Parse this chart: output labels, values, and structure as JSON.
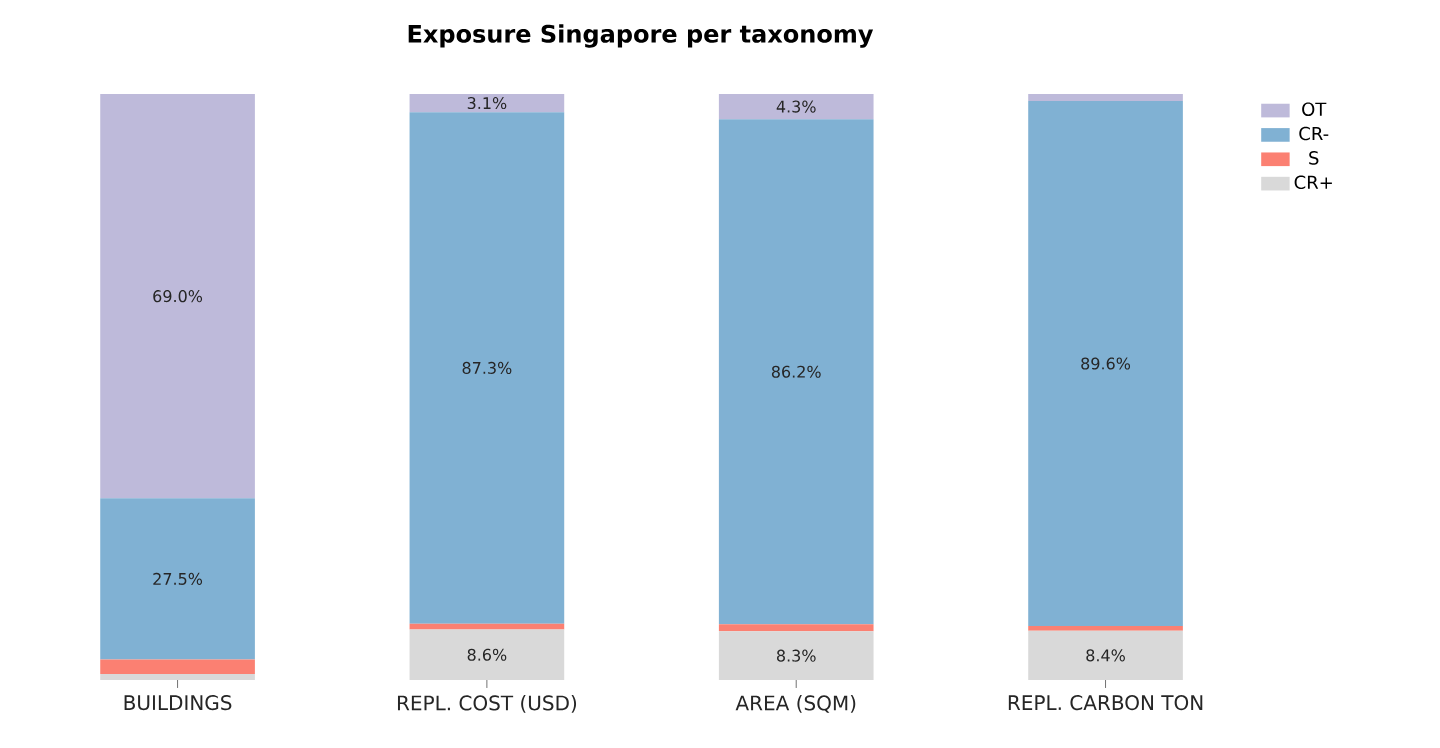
{
  "chart_data": {
    "type": "bar",
    "title": "Exposure Singapore per taxonomy",
    "stacked": true,
    "categories": [
      "BUILDINGS",
      "REPL. COST (USD)",
      "AREA (SQM)",
      "REPL. CARBON TON"
    ],
    "ylim": [
      0,
      100
    ],
    "tick_labels": "x",
    "legend": "top right",
    "grid": false,
    "series": [
      {
        "name": "CR+",
        "color": "#d9d9d9",
        "values": [
          1.0,
          8.6,
          8.3,
          8.4
        ],
        "value_labels": [
          null,
          "8.6%",
          "8.3%",
          "8.4%"
        ]
      },
      {
        "name": "S",
        "color": "#fb8072",
        "values": [
          2.5,
          1.0,
          1.2,
          0.8
        ],
        "value_labels": [
          null,
          null,
          null,
          null
        ]
      },
      {
        "name": "CR-",
        "color": "#80b1d3",
        "values": [
          27.5,
          87.3,
          86.2,
          89.6
        ],
        "value_labels": [
          "27.5%",
          "87.3%",
          "86.2%",
          "89.6%"
        ]
      },
      {
        "name": "OT",
        "color": "#bebada",
        "values": [
          69.0,
          3.1,
          4.3,
          1.2
        ],
        "value_labels": [
          "69.0%",
          "3.1%",
          "4.3%",
          null
        ]
      }
    ]
  }
}
